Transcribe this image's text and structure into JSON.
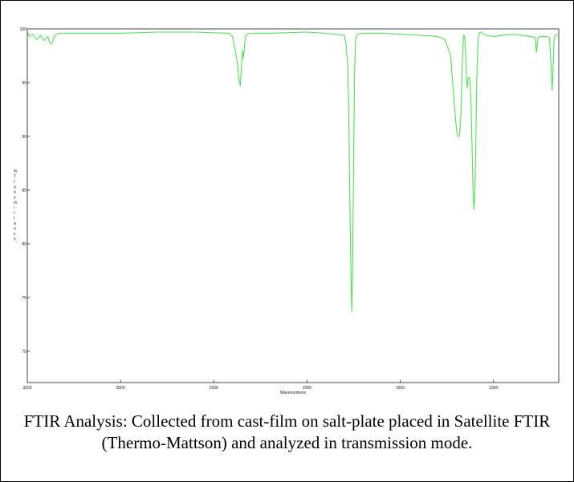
{
  "figure": {
    "caption": "FTIR Analysis: Collected from cast-film on salt-plate placed in Satellite FTIR (Thermo-Mattson) and analyzed in transmission mode."
  },
  "chart_data": {
    "type": "line",
    "title": "",
    "xlabel": "Wavenumbers",
    "ylabel": "% Transmittance",
    "xlim": [
      3500,
      650
    ],
    "ylim": [
      75,
      100
    ],
    "x_reversed": true,
    "xticks": [
      {
        "value": 3500,
        "label": "3500"
      },
      {
        "value": 3000,
        "label": "3000"
      },
      {
        "value": 2500,
        "label": "2500"
      },
      {
        "value": 2000,
        "label": "2000"
      },
      {
        "value": 1500,
        "label": "1500"
      },
      {
        "value": 1000,
        "label": "1000"
      }
    ],
    "yticks": [
      {
        "value": 100,
        "label": "100"
      },
      {
        "value": 95,
        "label": "95"
      },
      {
        "value": 90,
        "label": "90"
      },
      {
        "value": 85,
        "label": "85"
      },
      {
        "value": 80,
        "label": "80"
      },
      {
        "value": 75,
        "label": "75"
      },
      {
        "value": 70,
        "label": "70"
      }
    ],
    "grid": false,
    "legend": "none",
    "line_color": "#4ee44e",
    "series": [
      {
        "x": [
          3500,
          3490,
          3470,
          3450,
          3430,
          3410,
          3390,
          3380,
          3370,
          3360,
          3350,
          3330,
          3300,
          3200,
          3000,
          2800,
          2600,
          2420,
          2400,
          2385,
          2375,
          2365,
          2358,
          2352,
          2345,
          2340,
          2335,
          2330,
          2320,
          2300,
          2200,
          2000,
          1900,
          1850,
          1800,
          1790,
          1780,
          1775,
          1770,
          1765,
          1760,
          1755,
          1750,
          1745,
          1740,
          1730,
          1700,
          1600,
          1500,
          1400,
          1300,
          1260,
          1230,
          1210,
          1200,
          1195,
          1190,
          1185,
          1180,
          1175,
          1170,
          1165,
          1160,
          1155,
          1150,
          1145,
          1140,
          1135,
          1130,
          1125,
          1120,
          1115,
          1110,
          1105,
          1100,
          1095,
          1090,
          1085,
          1080,
          1075,
          1070,
          1065,
          1060,
          1050,
          1040,
          1000,
          900,
          800,
          780,
          775,
          770,
          760,
          740,
          720,
          700,
          695,
          690,
          685,
          680,
          675,
          670,
          660,
          650
        ],
        "y": [
          99.8,
          99.3,
          99.5,
          99.0,
          99.4,
          98.9,
          99.3,
          98.7,
          98.6,
          99.0,
          99.4,
          99.6,
          99.6,
          99.6,
          99.6,
          99.7,
          99.7,
          99.6,
          99.3,
          98.0,
          97.0,
          95.3,
          94.7,
          96.5,
          98.0,
          97.3,
          98.5,
          99.3,
          99.5,
          99.6,
          99.6,
          99.7,
          99.6,
          99.5,
          99.4,
          98.5,
          96.0,
          91.0,
          84.0,
          78.0,
          73.7,
          78.0,
          88.0,
          96.0,
          99.0,
          99.5,
          99.6,
          99.6,
          99.5,
          99.4,
          99.3,
          99.0,
          97.5,
          93.0,
          91.0,
          90.2,
          90.0,
          90.0,
          90.5,
          92.0,
          95.0,
          98.0,
          99.4,
          99.3,
          98.0,
          95.5,
          94.5,
          95.5,
          95.5,
          95.0,
          93.0,
          89.0,
          85.0,
          83.2,
          84.5,
          89.0,
          95.0,
          98.0,
          99.3,
          99.6,
          99.7,
          99.7,
          99.6,
          99.5,
          99.4,
          99.3,
          99.5,
          99.3,
          99.2,
          99.2,
          97.8,
          99.2,
          99.3,
          99.3,
          99.2,
          98.0,
          96.0,
          94.3,
          96.5,
          99.0,
          99.4,
          99.5,
          99.5
        ]
      }
    ]
  }
}
